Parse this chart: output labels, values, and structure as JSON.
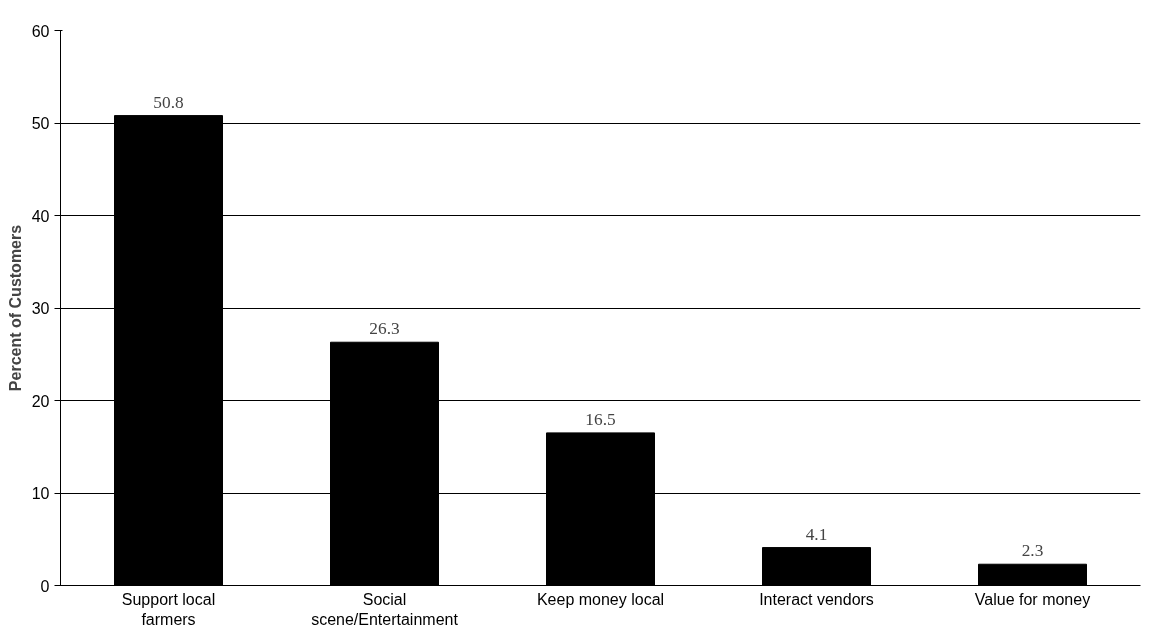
{
  "chart_data": {
    "type": "bar",
    "ylabel": "Percent of Customers",
    "categories": [
      "Support local\nfarmers",
      "Social\nscene/Entertainment",
      "Keep money local",
      "Interact vendors",
      "Value for money"
    ],
    "values": [
      50.8,
      26.3,
      16.5,
      4.1,
      2.3
    ],
    "color": "#000000",
    "ylim": [
      0,
      60
    ],
    "yticks": [
      0,
      10,
      20,
      30,
      40,
      50,
      60
    ],
    "grid": "y",
    "data_labels": true
  }
}
